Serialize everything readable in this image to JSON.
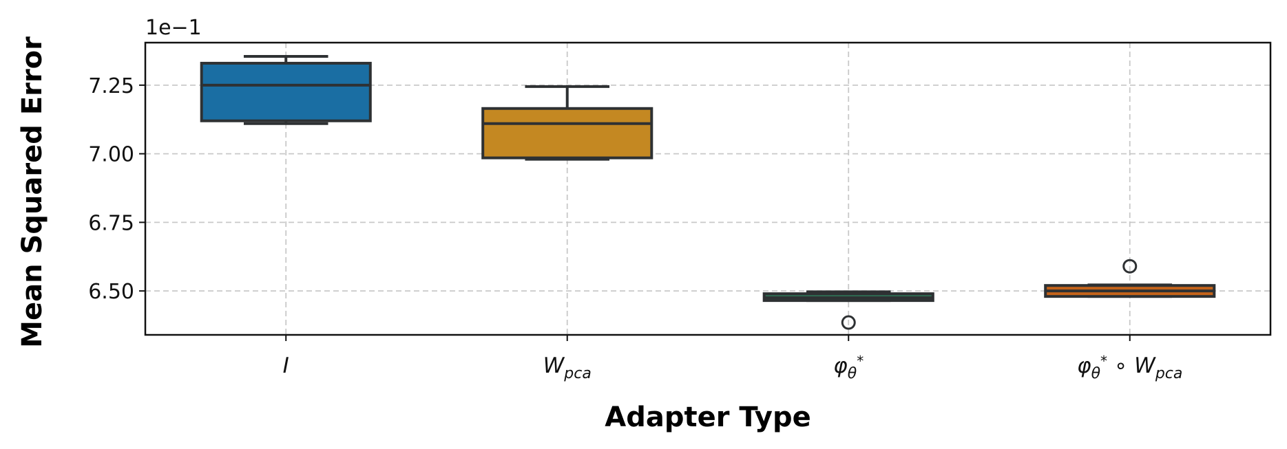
{
  "chart_data": {
    "type": "box",
    "xlabel": "Adapter Type",
    "ylabel": "Mean Squared Error",
    "y_offset_label": "1e−1",
    "ylim": [
      6.34,
      7.405
    ],
    "yticks": [
      6.5,
      6.75,
      7.0,
      7.25
    ],
    "ytick_labels": [
      "6.50",
      "6.75",
      "7.00",
      "7.25"
    ],
    "grid": true,
    "categories": [
      {
        "base": "I",
        "sub": "",
        "sup": "",
        "suffix_base": "",
        "suffix_sub": ""
      },
      {
        "base": "W",
        "sub": "pca",
        "sup": "",
        "suffix_base": "",
        "suffix_sub": ""
      },
      {
        "base": "φ",
        "sub": "θ",
        "sup": "*",
        "suffix_base": "",
        "suffix_sub": ""
      },
      {
        "base": "φ",
        "sub": "θ",
        "sup": "*",
        "suffix_base": " ∘ W",
        "suffix_sub": "pca"
      }
    ],
    "boxes": [
      {
        "whislo": 7.11,
        "q1": 7.12,
        "med": 7.25,
        "q3": 7.33,
        "whishi": 7.355,
        "fliers": [],
        "color": "#1a6ea3"
      },
      {
        "whislo": 6.98,
        "q1": 6.985,
        "med": 7.11,
        "q3": 7.165,
        "whishi": 7.245,
        "fliers": [],
        "color": "#c48822"
      },
      {
        "whislo": 6.465,
        "q1": 6.465,
        "med": 6.475,
        "q3": 6.49,
        "whishi": 6.497,
        "fliers": [
          6.385
        ],
        "color": "#2e6a52"
      },
      {
        "whislo": 6.48,
        "q1": 6.48,
        "med": 6.5,
        "q3": 6.52,
        "whishi": 6.522,
        "fliers": [
          6.59
        ],
        "color": "#c4631a"
      }
    ]
  }
}
